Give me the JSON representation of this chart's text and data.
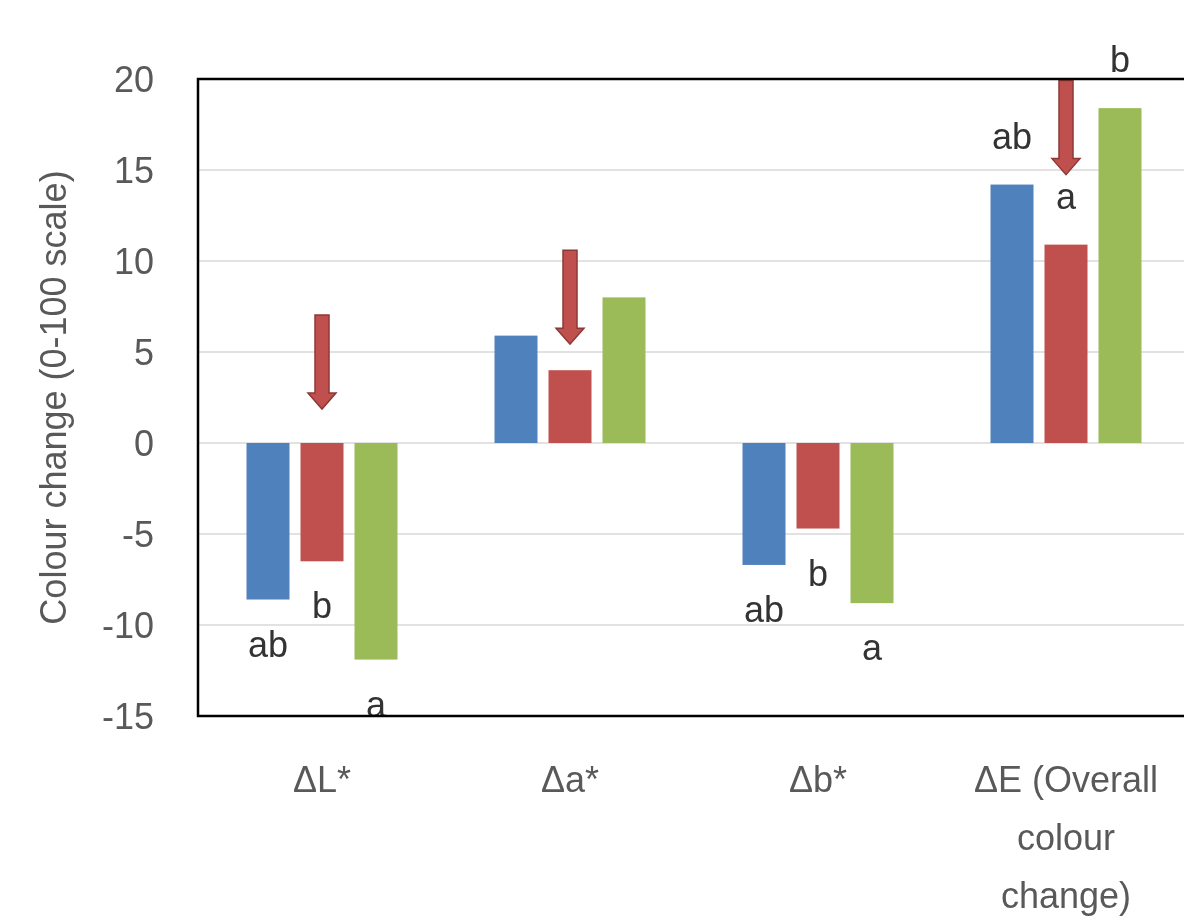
{
  "chart_data": {
    "type": "bar",
    "ylabel": "Colour change (0-100 scale)",
    "categories": [
      "ΔL*",
      "Δa*",
      "Δb*",
      "ΔE (Overall colour change)"
    ],
    "series": [
      {
        "color": "#4f81bd",
        "values": [
          -8.6,
          5.9,
          -6.7,
          14.2
        ],
        "value_labels": [
          "ab",
          null,
          "ab",
          "ab"
        ]
      },
      {
        "color": "#c0504d",
        "values": [
          -6.5,
          4.0,
          -4.7,
          10.9
        ],
        "value_labels": [
          "b",
          null,
          "b",
          "a"
        ]
      },
      {
        "color": "#9bbb59",
        "values": [
          -11.9,
          8.0,
          -8.8,
          18.4
        ],
        "value_labels": [
          "a",
          null,
          "a",
          "b"
        ]
      }
    ],
    "ylim": [
      -15,
      20
    ],
    "yticks": [
      -15,
      -10,
      -5,
      0,
      5,
      10,
      15,
      20
    ],
    "grid": "y"
  }
}
